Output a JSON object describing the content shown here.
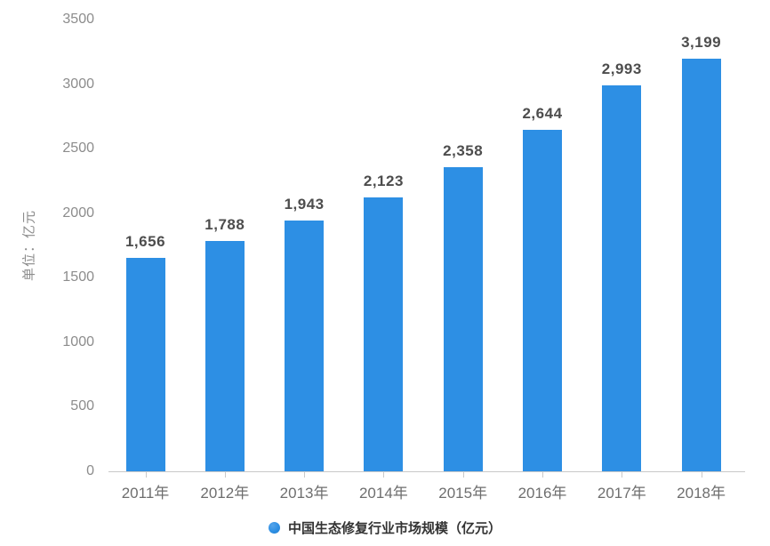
{
  "chart_data": {
    "type": "bar",
    "categories": [
      "2011年",
      "2012年",
      "2013年",
      "2014年",
      "2015年",
      "2016年",
      "2017年",
      "2018年"
    ],
    "values": [
      1656,
      1788,
      1943,
      2123,
      2358,
      2644,
      2993,
      3199
    ],
    "value_labels": [
      "1,656",
      "1,788",
      "1,943",
      "2,123",
      "2,358",
      "2,644",
      "2,993",
      "3,199"
    ],
    "title": "",
    "xlabel": "",
    "ylabel": "单位：亿元",
    "ylim": [
      0,
      3500
    ],
    "yticks": [
      0,
      500,
      1000,
      1500,
      2000,
      2500,
      3000,
      3500
    ],
    "grid": false,
    "legend_position": "bottom",
    "legend": "中国生态修复行业市场规模（亿元）",
    "bar_color": "#2d8fe4"
  },
  "colors": {
    "bar": "#2d8fe4",
    "axis_line": "#c9c9c9",
    "tick_text": "#8c8c8c",
    "category_text": "#6e6e6e",
    "data_label_text": "#4d4d4d",
    "legend_text": "#333333",
    "background": "#ffffff"
  },
  "legend_marker": "blue-circle"
}
